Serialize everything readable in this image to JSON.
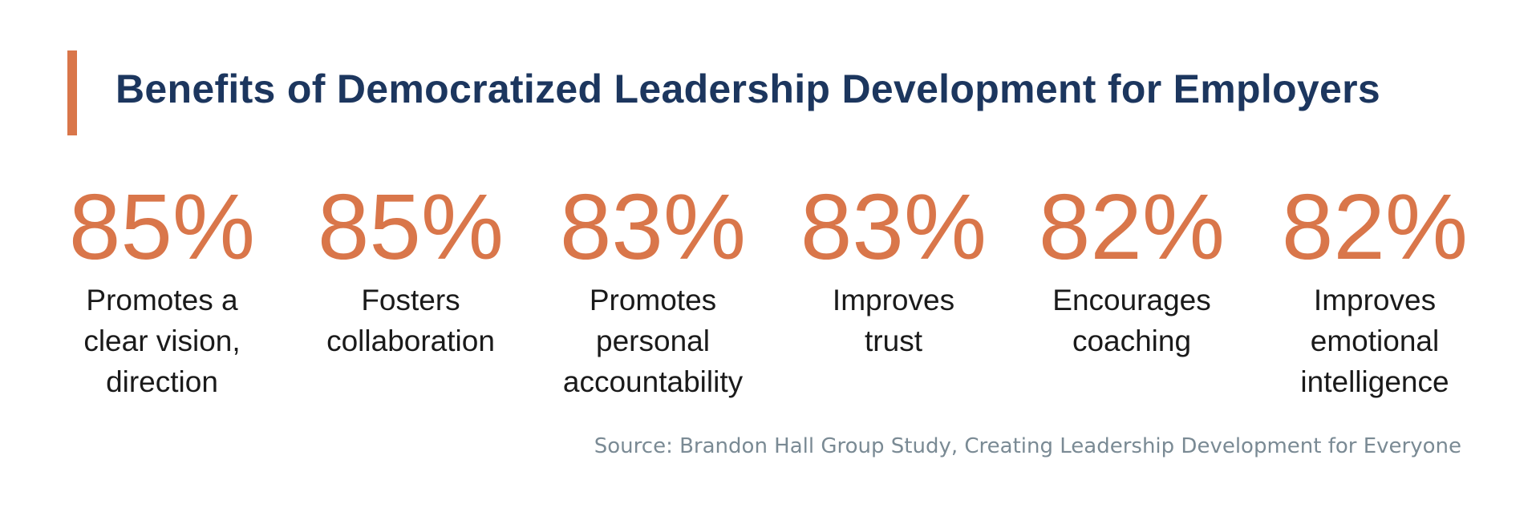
{
  "title": "Benefits of Democratized Leadership Development for Employers",
  "colors": {
    "accent": "#D9764A",
    "title": "#1C365E",
    "source": "#7A8A94"
  },
  "stats": [
    {
      "value": "85%",
      "label": "Promotes a\nclear vision,\ndirection"
    },
    {
      "value": "85%",
      "label": "Fosters\ncollaboration"
    },
    {
      "value": "83%",
      "label": "Promotes\npersonal\naccountability"
    },
    {
      "value": "83%",
      "label": "Improves\ntrust"
    },
    {
      "value": "82%",
      "label": "Encourages\ncoaching"
    },
    {
      "value": "82%",
      "label": "Improves\nemotional\nintelligence"
    }
  ],
  "source": "Source: Brandon Hall Group Study, Creating Leadership Development for Everyone"
}
